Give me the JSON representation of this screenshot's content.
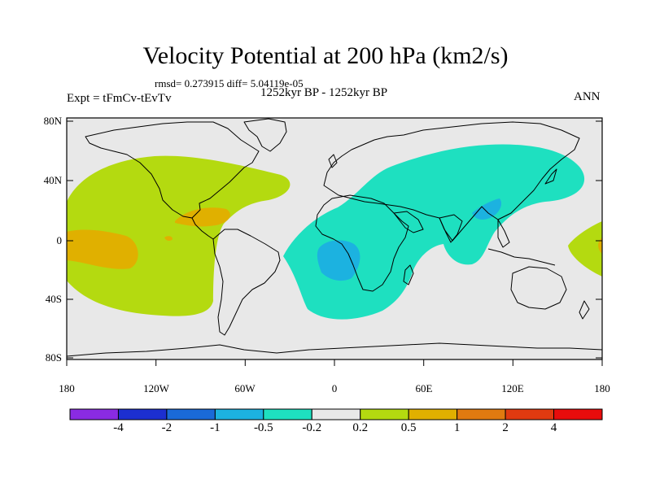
{
  "title": "Velocity Potential at 200 hPa (km2/s)",
  "stats": "rmsd= 0.273915 diff= 5.04119e-05",
  "left_label": "Expt = tFmCv-tEvTv",
  "center_label": "1252kyr BP - 1252kyr BP",
  "right_label": "ANN",
  "lat_ticks": [
    "80N",
    "40N",
    "0",
    "40S",
    "80S"
  ],
  "lon_ticks": [
    "180",
    "120W",
    "60W",
    "0",
    "60E",
    "120E",
    "180"
  ],
  "colorbar": {
    "colors": [
      "#8a2be2",
      "#1c2fd0",
      "#1a6ad8",
      "#1cb2e0",
      "#1ee0c0",
      "#e8e8e8",
      "#b4da10",
      "#e0b000",
      "#e07a10",
      "#e03a10",
      "#e80c0c"
    ],
    "labels": [
      "-4",
      "-2",
      "-1",
      "-0.5",
      "-0.2",
      "0.2",
      "0.5",
      "1",
      "2",
      "4"
    ]
  },
  "chart_data": {
    "type": "map",
    "projection": "cylindrical-equidistant",
    "variable": "velocity potential difference at 200 hPa",
    "units": "km2/s",
    "lon_range": [
      -180,
      180
    ],
    "lat_range": [
      -90,
      90
    ],
    "contour_levels": [
      -4,
      -2,
      -1,
      -0.5,
      -0.2,
      0.2,
      0.5,
      1,
      2,
      4
    ],
    "regions": [
      {
        "name": "eastern Pacific / Americas positive anomaly",
        "range": [
          0.2,
          0.5
        ]
      },
      {
        "name": "central-east Pacific maximum",
        "range": [
          0.5,
          1
        ]
      },
      {
        "name": "Caribbean / Gulf of Mexico maximum",
        "range": [
          0.5,
          1
        ]
      },
      {
        "name": "Africa / Indian Ocean / Asia negative anomaly",
        "range": [
          -0.5,
          -0.2
        ]
      },
      {
        "name": "central Africa minimum",
        "range": [
          -1,
          -0.5
        ]
      },
      {
        "name": "South Asia minimum",
        "range": [
          -1,
          -0.5
        ]
      },
      {
        "name": "western Pacific dateline positive anomaly",
        "range": [
          0.2,
          0.5
        ]
      }
    ]
  }
}
